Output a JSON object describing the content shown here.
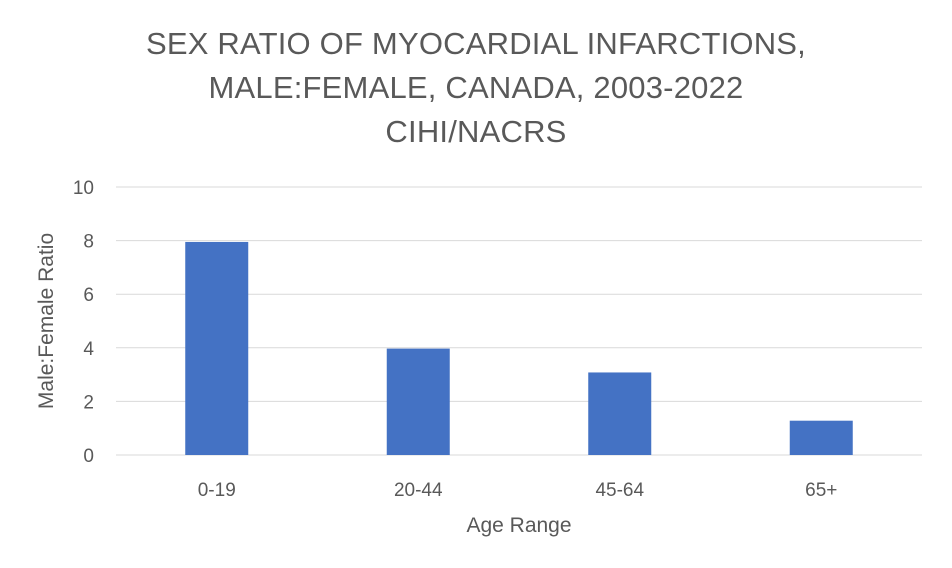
{
  "chart_data": {
    "type": "bar",
    "title_lines": [
      "SEX RATIO OF MYOCARDIAL INFARCTIONS,",
      "MALE:FEMALE, CANADA, 2003-2022",
      "CIHI/NACRS"
    ],
    "categories": [
      "0-19",
      "20-44",
      "45-64",
      "65+"
    ],
    "values": [
      7.95,
      3.97,
      3.08,
      1.28
    ],
    "xlabel": "Age Range",
    "ylabel": "Male:Female Ratio",
    "ylim": [
      0,
      10
    ],
    "yticks": [
      "0",
      "2",
      "4",
      "6",
      "8",
      "10"
    ],
    "grid": true,
    "legend": "none",
    "bar_color": "#4472C4",
    "grid_color": "#D9D9D9",
    "text_color": "#595959"
  }
}
